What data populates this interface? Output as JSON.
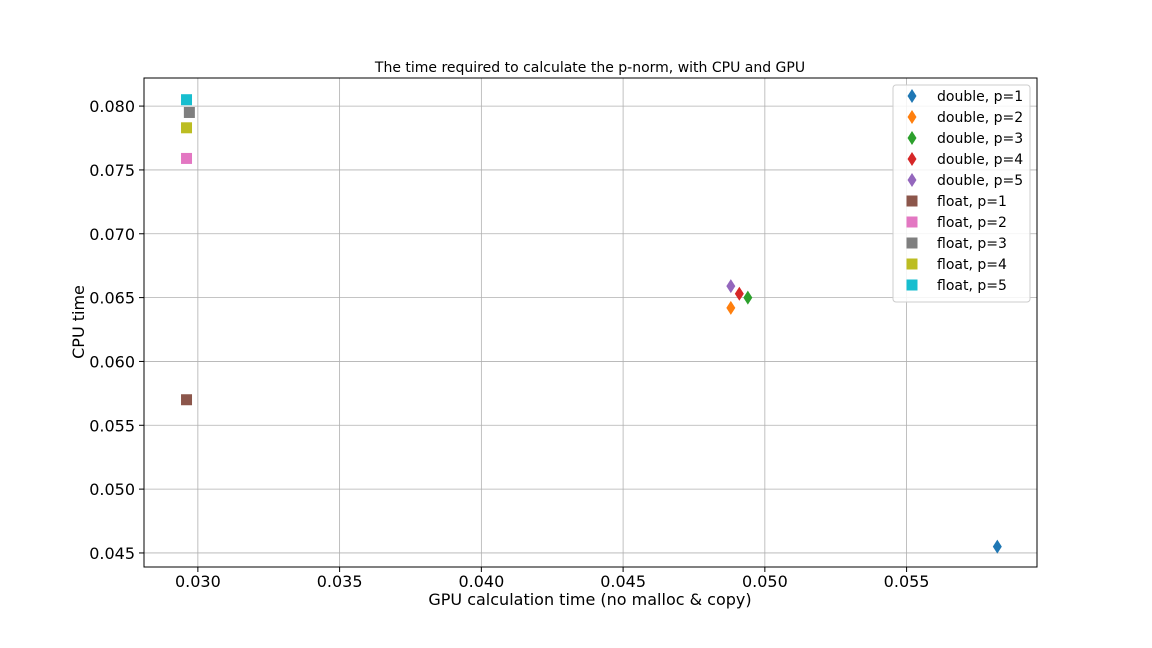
{
  "chart_data": {
    "type": "scatter",
    "title": "The time required to calculate the p-norm, with CPU and GPU",
    "xlabel": "GPU calculation time (no malloc & copy)",
    "ylabel": "CPU time",
    "xlim": [
      0.0281,
      0.0596
    ],
    "ylim": [
      0.0439,
      0.0822
    ],
    "xticks": [
      0.03,
      0.035,
      0.04,
      0.045,
      0.05,
      0.055
    ],
    "xtick_labels": [
      "0.030",
      "0.035",
      "0.040",
      "0.045",
      "0.050",
      "0.055"
    ],
    "yticks": [
      0.045,
      0.05,
      0.055,
      0.06,
      0.065,
      0.07,
      0.075,
      0.08
    ],
    "ytick_labels": [
      "0.045",
      "0.050",
      "0.055",
      "0.060",
      "0.065",
      "0.070",
      "0.075",
      "0.080"
    ],
    "grid": true,
    "legend_position": "top-right",
    "series": [
      {
        "name": "double, p=1",
        "marker": "diamond",
        "color": "#1f77b4",
        "x": [
          0.0582
        ],
        "y": [
          0.0455
        ]
      },
      {
        "name": "double, p=2",
        "marker": "diamond",
        "color": "#ff7f0e",
        "x": [
          0.0488
        ],
        "y": [
          0.0642
        ]
      },
      {
        "name": "double, p=3",
        "marker": "diamond",
        "color": "#2ca02c",
        "x": [
          0.0494
        ],
        "y": [
          0.065
        ]
      },
      {
        "name": "double, p=4",
        "marker": "diamond",
        "color": "#d62728",
        "x": [
          0.0491
        ],
        "y": [
          0.0653
        ]
      },
      {
        "name": "double, p=5",
        "marker": "diamond",
        "color": "#9467bd",
        "x": [
          0.0488
        ],
        "y": [
          0.0659
        ]
      },
      {
        "name": "float, p=1",
        "marker": "square",
        "color": "#8c564b",
        "x": [
          0.0296
        ],
        "y": [
          0.057
        ]
      },
      {
        "name": "float, p=2",
        "marker": "square",
        "color": "#e377c2",
        "x": [
          0.0296
        ],
        "y": [
          0.0759
        ]
      },
      {
        "name": "float, p=3",
        "marker": "square",
        "color": "#7f7f7f",
        "x": [
          0.0297
        ],
        "y": [
          0.0795
        ]
      },
      {
        "name": "float, p=4",
        "marker": "square",
        "color": "#bcbd22",
        "x": [
          0.0296
        ],
        "y": [
          0.0783
        ]
      },
      {
        "name": "float, p=5",
        "marker": "square",
        "color": "#17becf",
        "x": [
          0.0296
        ],
        "y": [
          0.0805
        ]
      }
    ]
  }
}
